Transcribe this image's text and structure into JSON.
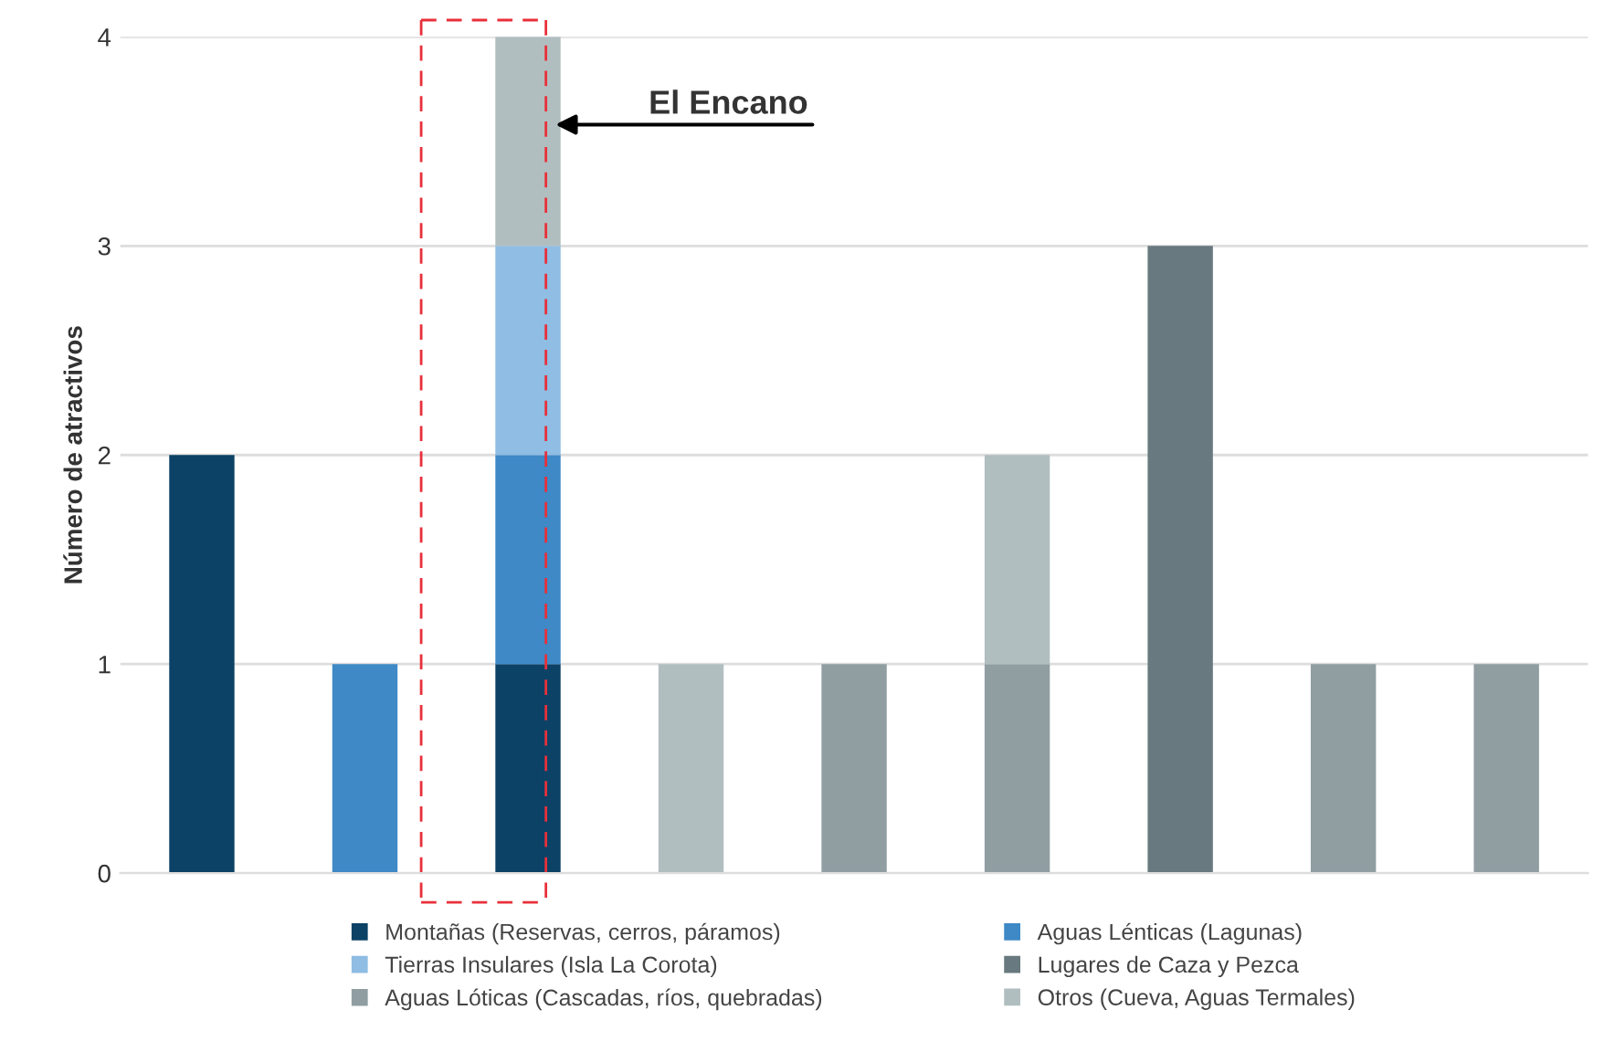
{
  "chart_data": {
    "type": "bar",
    "stacked": true,
    "ylabel": "Número de atractivos",
    "categories": [
      null,
      null,
      null,
      null,
      null,
      null,
      null,
      null,
      null
    ],
    "series": [
      {
        "name": "Montañas (Reservas, cerros, páramos)",
        "color": "#0b4266",
        "values": [
          2,
          null,
          1,
          null,
          null,
          null,
          null,
          null,
          null
        ]
      },
      {
        "name": "Aguas Lénticas (Lagunas)",
        "color": "#3e89c6",
        "values": [
          null,
          1,
          1,
          null,
          null,
          null,
          null,
          null,
          null
        ]
      },
      {
        "name": "Tierras Insulares (Isla La Corota)",
        "color": "#8fbde3",
        "values": [
          null,
          null,
          1,
          null,
          null,
          null,
          null,
          null,
          null
        ]
      },
      {
        "name": "Lugares de Caza y Pezca",
        "color": "#68797f",
        "values": [
          null,
          null,
          null,
          null,
          null,
          null,
          3,
          null,
          null
        ]
      },
      {
        "name": "Aguas Lóticas (Cascadas, ríos, quebradas)",
        "color": "#909ea2",
        "values": [
          null,
          null,
          null,
          null,
          1,
          1,
          null,
          1,
          1
        ]
      },
      {
        "name": "Otros (Cueva, Aguas Termales)",
        "color": "#b1bec0",
        "values": [
          null,
          null,
          1,
          1,
          null,
          1,
          null,
          null,
          null
        ]
      }
    ],
    "ylim": [
      0,
      4
    ],
    "yticks": [
      0,
      1,
      2,
      3,
      4
    ],
    "grid": "y",
    "legend": "bottom",
    "annotations": [
      "El Encano"
    ]
  }
}
